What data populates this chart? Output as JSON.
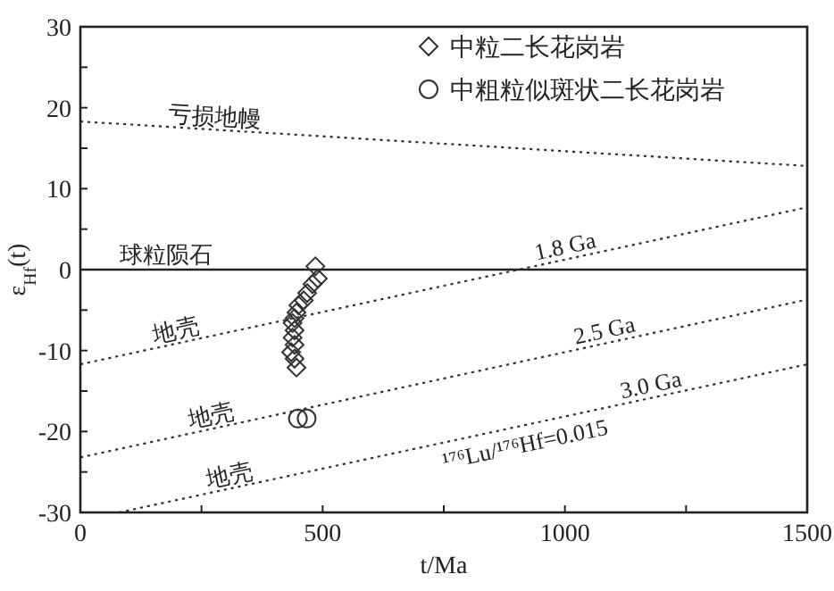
{
  "chart_data": {
    "type": "scatter",
    "xlabel": "t/Ma",
    "ylabel": "ε$_{Hf}$(t)",
    "xlim": [
      0,
      1500
    ],
    "ylim": [
      -30,
      30
    ],
    "xticks": [
      0,
      {
        "value": 250,
        "label": null
      },
      500,
      {
        "value": 750,
        "label": null
      },
      1000,
      {
        "value": 1250,
        "label": null
      },
      1500
    ],
    "yticks": [
      -30,
      {
        "value": -25,
        "label": null
      },
      -20,
      {
        "value": -15,
        "label": null
      },
      -10,
      {
        "value": -5,
        "label": null
      },
      0,
      {
        "value": 5,
        "label": null
      },
      10,
      {
        "value": 15,
        "label": null
      },
      20,
      {
        "value": 25,
        "label": null
      },
      30
    ],
    "legend": "top right",
    "grid": false,
    "ref_lines": [
      {
        "axis": "y",
        "value": 0,
        "label": "球粒陨石",
        "color": "#222222",
        "line_style": "solid"
      }
    ],
    "series": [
      {
        "name": "中粒二长花岗岩",
        "marker": "diamond",
        "color": "#333333",
        "x": [
          485,
          490,
          479,
          468,
          461,
          450,
          446,
          442,
          438,
          442,
          438,
          442,
          435,
          442,
          446
        ],
        "values": [
          0.4,
          -1.1,
          -1.8,
          -2.9,
          -3.8,
          -4.4,
          -5.3,
          -6,
          -6.6,
          -7.5,
          -8.4,
          -9.3,
          -10.2,
          -11,
          -12.1
        ]
      },
      {
        "name": "中粗粒似斑状二长花岗岩",
        "marker": "circle",
        "color": "#333333",
        "x": [
          449,
          467
        ],
        "values": [
          -18.4,
          -18.4
        ]
      },
      {
        "type": "line",
        "line_style": "dotted",
        "color": "#333333",
        "x": [
          0,
          1500
        ],
        "values": [
          18.3,
          12.8
        ]
      },
      {
        "type": "line",
        "line_style": "dotted",
        "color": "#333333",
        "x": [
          0,
          1500
        ],
        "values": [
          -11.7,
          7.7
        ]
      },
      {
        "type": "line",
        "line_style": "dotted",
        "color": "#333333",
        "x": [
          0,
          1500
        ],
        "values": [
          -23.2,
          -3.7
        ]
      },
      {
        "type": "line",
        "line_style": "dotted",
        "color": "#333333",
        "x": [
          80,
          1500
        ],
        "values": [
          -30,
          -11.7
        ]
      }
    ],
    "annotations": [
      {
        "text": "亏损地幔",
        "x": 276,
        "y": 17.29
      },
      {
        "text": "1.8 Ga",
        "x": 1006,
        "y": 1.31
      },
      {
        "text": "地壳",
        "x": 203,
        "y": -9.07
      },
      {
        "text": "2.5 Ga",
        "x": 1087,
        "y": -9.07
      },
      {
        "text": "地壳",
        "x": 276,
        "y": -19.61
      },
      {
        "text": "3.0 Ga",
        "x": 1183,
        "y": -15.79
      },
      {
        "text": "地壳",
        "x": 313,
        "y": -27
      },
      "¹⁷⁶Lu/¹⁷⁶Hf=0.015"
    ]
  }
}
